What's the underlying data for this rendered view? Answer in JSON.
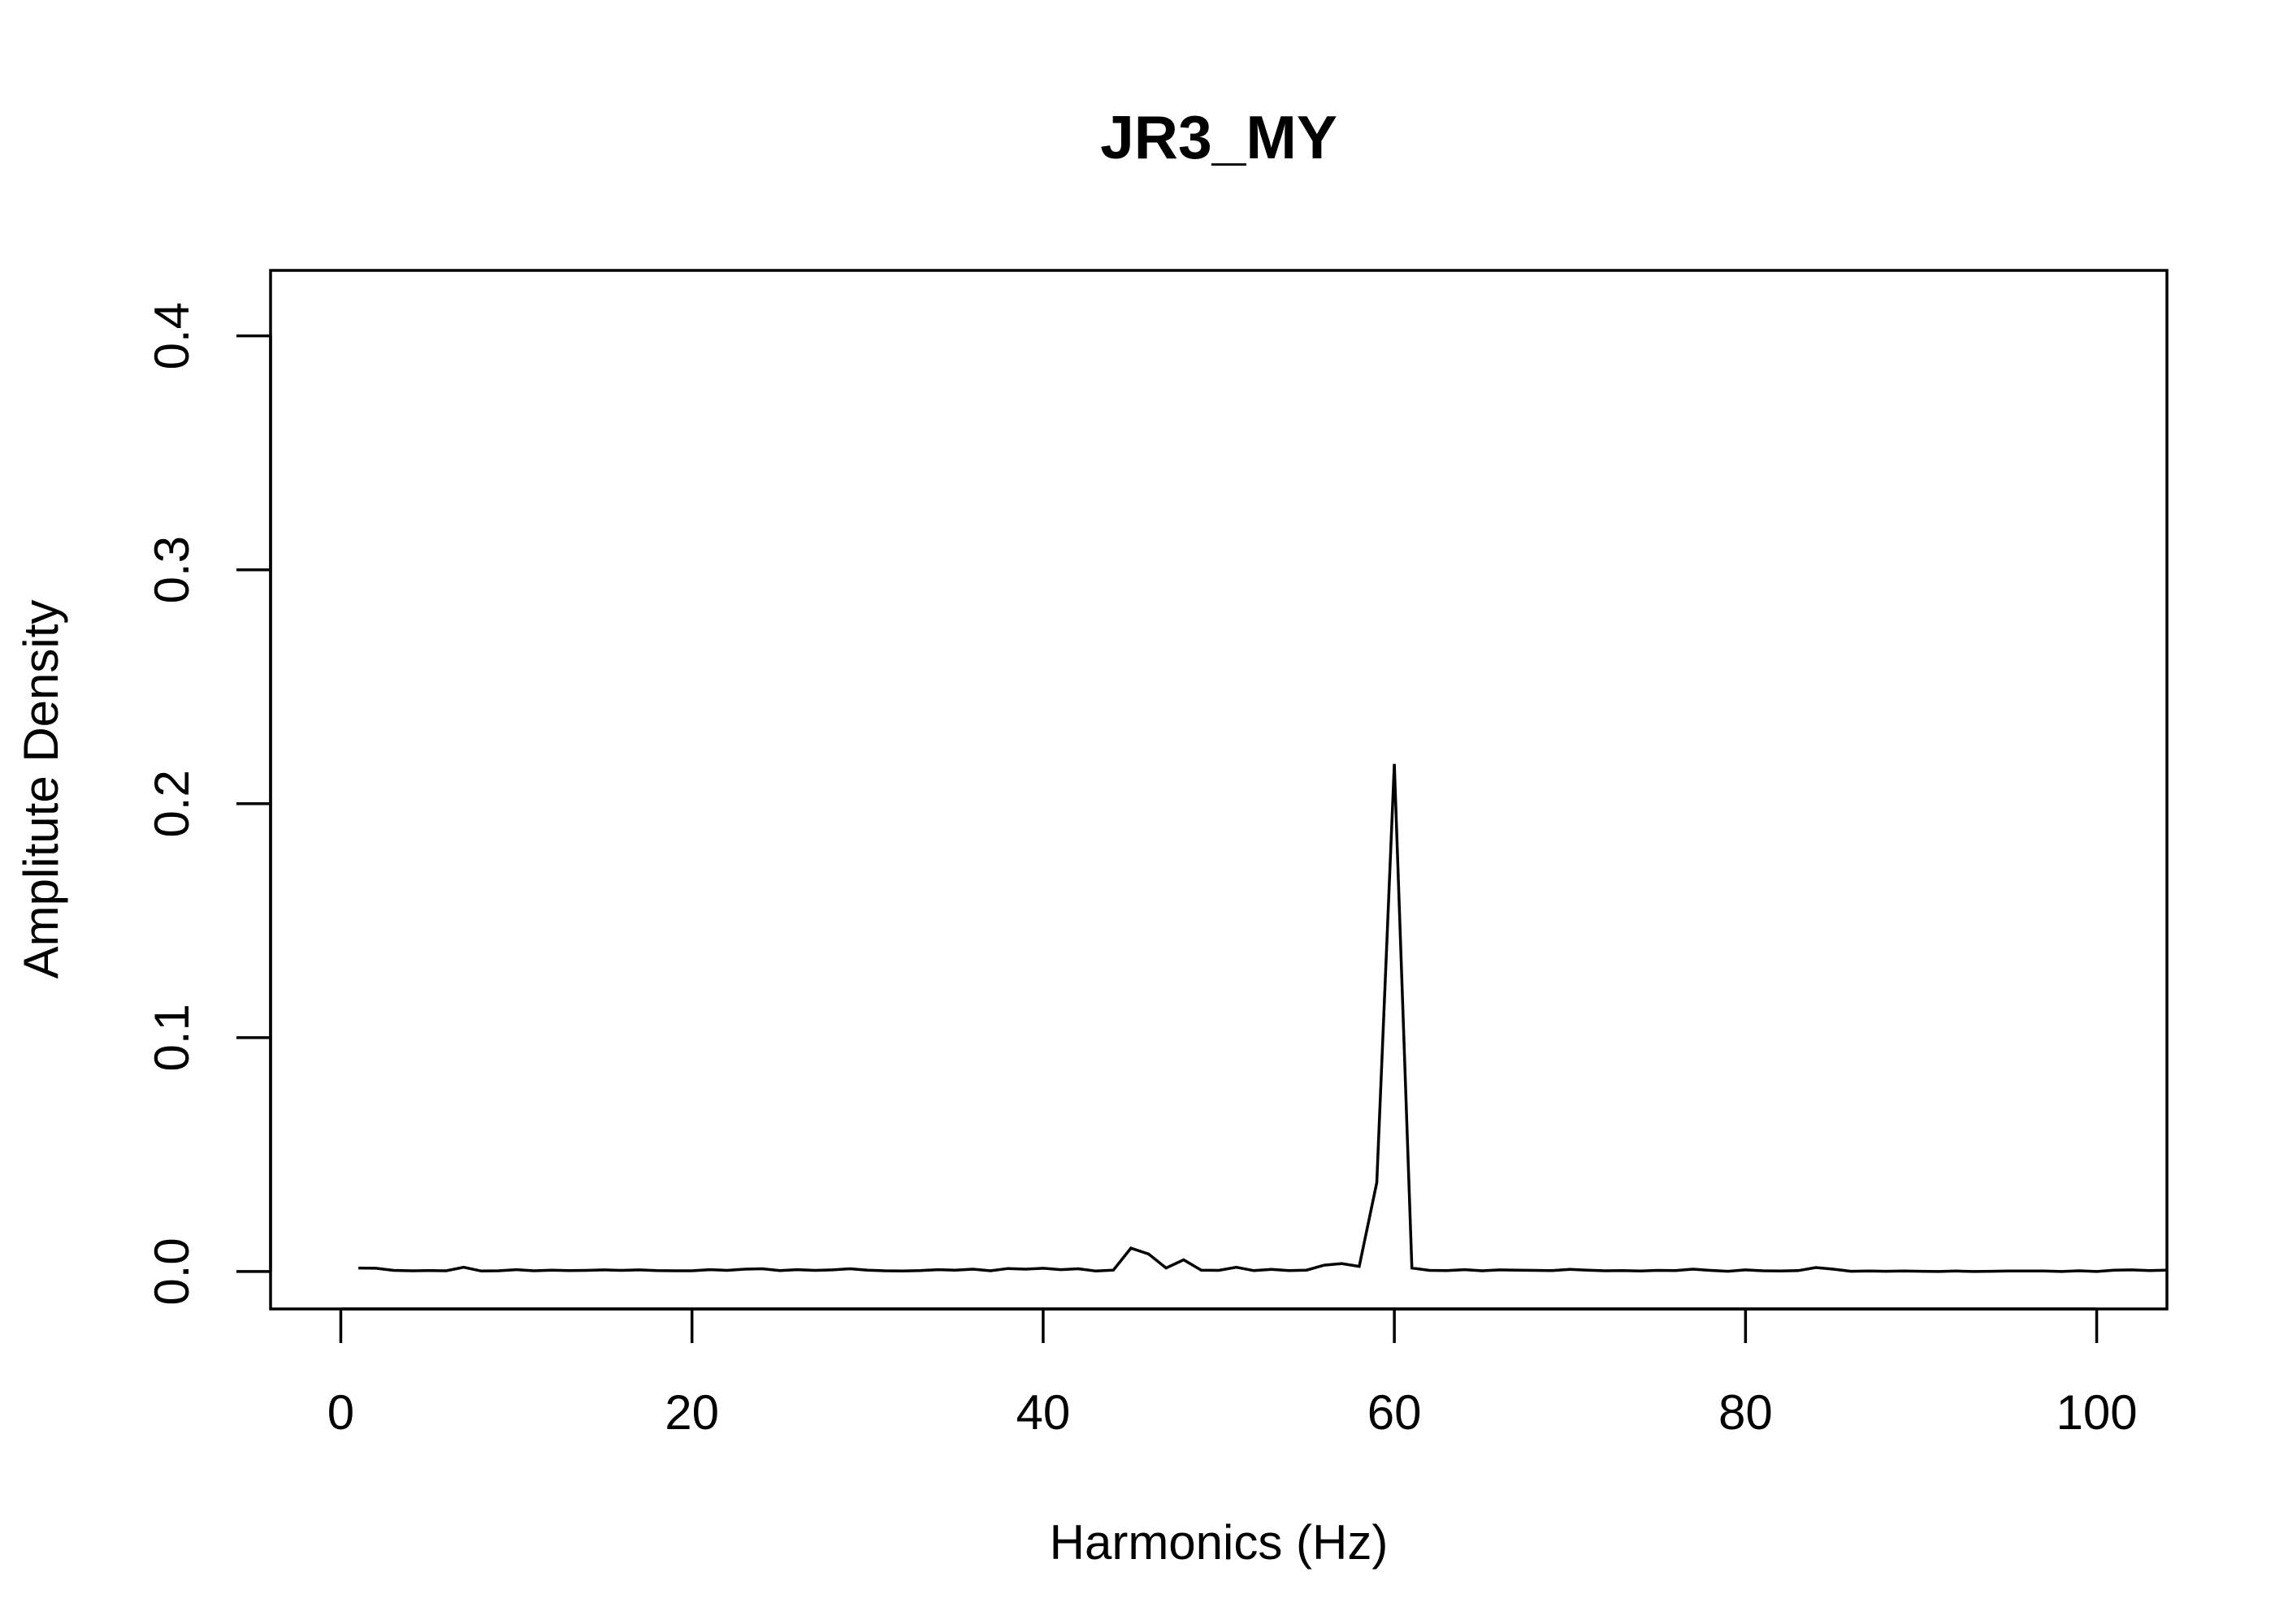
{
  "chart_data": {
    "type": "line",
    "title": "JR3_MY",
    "xlabel": "Harmonics (Hz)",
    "ylabel": "Amplitute Density",
    "xlim": [
      -4,
      104
    ],
    "ylim": [
      -0.016,
      0.428
    ],
    "x_ticks": [
      0,
      20,
      40,
      60,
      80,
      100
    ],
    "x_tick_labels": [
      "0",
      "20",
      "40",
      "60",
      "80",
      "100"
    ],
    "y_ticks": [
      0.0,
      0.1,
      0.2,
      0.3,
      0.4
    ],
    "y_tick_labels": [
      "0.0",
      "0.1",
      "0.2",
      "0.3",
      "0.4"
    ],
    "grid": false,
    "legend": "none",
    "series": [
      {
        "x": [
          1,
          2,
          3,
          4,
          5,
          6,
          7,
          8,
          9,
          10,
          11,
          12,
          13,
          14,
          15,
          16,
          17,
          18,
          19,
          20,
          21,
          22,
          23,
          24,
          25,
          26,
          27,
          28,
          29,
          30,
          31,
          32,
          33,
          34,
          35,
          36,
          37,
          38,
          39,
          40,
          41,
          42,
          43,
          44,
          45,
          46,
          47,
          48,
          49,
          50,
          51,
          52,
          53,
          54,
          55,
          56,
          57,
          58,
          59,
          60,
          61,
          62,
          63,
          64,
          65,
          66,
          67,
          68,
          69,
          70,
          71,
          72,
          73,
          74,
          75,
          76,
          77,
          78,
          79,
          80,
          81,
          82,
          83,
          84,
          85,
          86,
          87,
          88,
          89,
          90,
          91,
          92,
          93,
          94,
          95,
          96,
          97,
          98,
          99,
          100,
          101,
          102,
          103,
          104
        ],
        "y": [
          0.0015,
          0.0014,
          0.0005,
          0.0003,
          0.0004,
          0.0003,
          0.0018,
          0.0002,
          0.0003,
          0.0008,
          0.0003,
          0.0006,
          0.0004,
          0.0005,
          0.0007,
          0.0005,
          0.0007,
          0.0004,
          0.0003,
          0.0003,
          0.0008,
          0.0005,
          0.001,
          0.0012,
          0.0004,
          0.0008,
          0.0005,
          0.0007,
          0.0012,
          0.0006,
          0.0003,
          0.0002,
          0.0004,
          0.0008,
          0.0006,
          0.001,
          0.0003,
          0.0013,
          0.001,
          0.0014,
          0.0008,
          0.0012,
          0.0002,
          0.0006,
          0.01,
          0.0075,
          0.0015,
          0.005,
          0.0006,
          0.0005,
          0.0018,
          0.0004,
          0.0009,
          0.0004,
          0.0006,
          0.0027,
          0.0034,
          0.0022,
          0.038,
          0.217,
          0.0015,
          0.0005,
          0.0004,
          0.0008,
          0.0003,
          0.0007,
          0.0006,
          0.0005,
          0.0004,
          0.0009,
          0.0006,
          0.0003,
          0.0004,
          0.0002,
          0.0005,
          0.0004,
          0.001,
          0.0005,
          0.0001,
          0.0007,
          0.0003,
          0.0002,
          0.0004,
          0.0017,
          0.001,
          0.0001,
          0.0002,
          0.0001,
          0.0002,
          0.0001,
          0.0,
          0.0002,
          0.0,
          0.0001,
          0.0002,
          0.0002,
          0.0002,
          0.0,
          0.0003,
          0.0,
          0.0006,
          0.0007,
          0.0004,
          0.0006
        ]
      }
    ]
  }
}
